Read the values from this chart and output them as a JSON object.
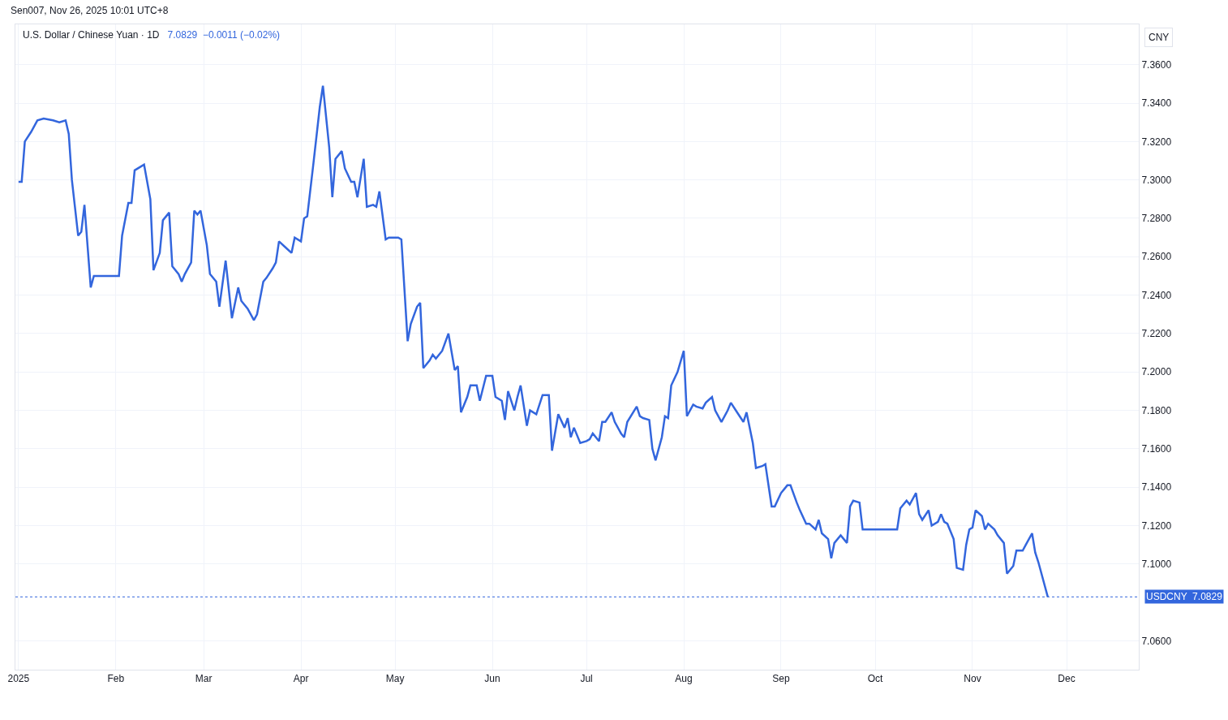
{
  "chart_data": {
    "type": "line",
    "title": "U.S. Dollar / Chinese Yuan · 1D",
    "subtitle": "7.0829  −0.0011 (−0.02%)",
    "annotations": [
      "Sen007, Nov 26, 2025 10:01 UTC+8",
      "CNY"
    ],
    "x": [
      "2025-01-01",
      "2025-01-02",
      "2025-01-03",
      "2025-01-05",
      "2025-01-07",
      "2025-01-09",
      "2025-01-12",
      "2025-01-14",
      "2025-01-16",
      "2025-01-17",
      "2025-01-18",
      "2025-01-20",
      "2025-01-21",
      "2025-01-22",
      "2025-01-24",
      "2025-01-25",
      "2025-02-02",
      "2025-02-03",
      "2025-02-05",
      "2025-02-06",
      "2025-02-07",
      "2025-02-09",
      "2025-02-10",
      "2025-02-12",
      "2025-02-13",
      "2025-02-15",
      "2025-02-16",
      "2025-02-18",
      "2025-02-19",
      "2025-02-21",
      "2025-02-22",
      "2025-02-23",
      "2025-02-25",
      "2025-02-26",
      "2025-02-27",
      "2025-02-28",
      "2025-03-02",
      "2025-03-03",
      "2025-03-05",
      "2025-03-06",
      "2025-03-08",
      "2025-03-10",
      "2025-03-11",
      "2025-03-12",
      "2025-03-13",
      "2025-03-15",
      "2025-03-17",
      "2025-03-18",
      "2025-03-20",
      "2025-03-21",
      "2025-03-23",
      "2025-03-24",
      "2025-03-25",
      "2025-03-27",
      "2025-03-29",
      "2025-03-30",
      "2025-04-01",
      "2025-04-02",
      "2025-04-03",
      "2025-04-05",
      "2025-04-07",
      "2025-04-08",
      "2025-04-10",
      "2025-04-11",
      "2025-04-12",
      "2025-04-14",
      "2025-04-15",
      "2025-04-17",
      "2025-04-18",
      "2025-04-19",
      "2025-04-21",
      "2025-04-22",
      "2025-04-24",
      "2025-04-25",
      "2025-04-26",
      "2025-04-28",
      "2025-04-29",
      "2025-05-02",
      "2025-05-03",
      "2025-05-05",
      "2025-05-06",
      "2025-05-08",
      "2025-05-09",
      "2025-05-10",
      "2025-05-12",
      "2025-05-13",
      "2025-05-14",
      "2025-05-16",
      "2025-05-18",
      "2025-05-20",
      "2025-05-21",
      "2025-05-22",
      "2025-05-24",
      "2025-05-25",
      "2025-05-27",
      "2025-05-28",
      "2025-05-30",
      "2025-06-01",
      "2025-06-02",
      "2025-06-04",
      "2025-06-05",
      "2025-06-06",
      "2025-06-08",
      "2025-06-09",
      "2025-06-10",
      "2025-06-12",
      "2025-06-13",
      "2025-06-15",
      "2025-06-17",
      "2025-06-19",
      "2025-06-20",
      "2025-06-22",
      "2025-06-24",
      "2025-06-25",
      "2025-06-26",
      "2025-06-27",
      "2025-06-29",
      "2025-07-01",
      "2025-07-02",
      "2025-07-03",
      "2025-07-05",
      "2025-07-06",
      "2025-07-07",
      "2025-07-09",
      "2025-07-10",
      "2025-07-12",
      "2025-07-13",
      "2025-07-14",
      "2025-07-17",
      "2025-07-18",
      "2025-07-19",
      "2025-07-21",
      "2025-07-22",
      "2025-07-23",
      "2025-07-25",
      "2025-07-26",
      "2025-07-27",
      "2025-07-28",
      "2025-07-30",
      "2025-08-01",
      "2025-08-02",
      "2025-08-04",
      "2025-08-05",
      "2025-08-07",
      "2025-08-08",
      "2025-08-10",
      "2025-08-11",
      "2025-08-13",
      "2025-08-15",
      "2025-08-16",
      "2025-08-18",
      "2025-08-20",
      "2025-08-21",
      "2025-08-23",
      "2025-08-24",
      "2025-08-26",
      "2025-08-27",
      "2025-08-29",
      "2025-08-30",
      "2025-09-01",
      "2025-09-02",
      "2025-09-03",
      "2025-09-04",
      "2025-09-06",
      "2025-09-07",
      "2025-09-09",
      "2025-09-10",
      "2025-09-12",
      "2025-09-13",
      "2025-09-14",
      "2025-09-16",
      "2025-09-17",
      "2025-09-18",
      "2025-09-20",
      "2025-09-22",
      "2025-09-23",
      "2025-09-24",
      "2025-09-26",
      "2025-09-27",
      "2025-09-28",
      "2025-10-08",
      "2025-10-09",
      "2025-10-11",
      "2025-10-12",
      "2025-10-14",
      "2025-10-15",
      "2025-10-16",
      "2025-10-18",
      "2025-10-19",
      "2025-10-21",
      "2025-10-22",
      "2025-10-23",
      "2025-10-24",
      "2025-10-26",
      "2025-10-27",
      "2025-10-29",
      "2025-10-30",
      "2025-10-31",
      "2025-11-01",
      "2025-11-02",
      "2025-11-04",
      "2025-11-05",
      "2025-11-06",
      "2025-11-08",
      "2025-11-09",
      "2025-11-11",
      "2025-11-12",
      "2025-11-14",
      "2025-11-15",
      "2025-11-17",
      "2025-11-18",
      "2025-11-20",
      "2025-11-21",
      "2025-11-22",
      "2025-11-25"
    ],
    "series": [
      {
        "color": "#3366dd",
        "values": [
          7.299,
          7.299,
          7.32,
          7.325,
          7.331,
          7.332,
          7.331,
          7.33,
          7.331,
          7.324,
          7.3,
          7.271,
          7.273,
          7.287,
          7.244,
          7.25,
          7.25,
          7.271,
          7.288,
          7.288,
          7.305,
          7.307,
          7.308,
          7.29,
          7.253,
          7.262,
          7.279,
          7.283,
          7.255,
          7.251,
          7.247,
          7.251,
          7.257,
          7.284,
          7.282,
          7.284,
          7.266,
          7.251,
          7.247,
          7.234,
          7.258,
          7.228,
          7.236,
          7.244,
          7.237,
          7.233,
          7.227,
          7.23,
          7.247,
          7.249,
          7.254,
          7.257,
          7.268,
          7.265,
          7.262,
          7.27,
          7.268,
          7.28,
          7.281,
          7.309,
          7.338,
          7.349,
          7.317,
          7.291,
          7.311,
          7.315,
          7.306,
          7.299,
          7.299,
          7.291,
          7.311,
          7.286,
          7.287,
          7.286,
          7.294,
          7.269,
          7.27,
          7.27,
          7.269,
          7.216,
          7.225,
          7.234,
          7.236,
          7.202,
          7.206,
          7.209,
          7.207,
          7.211,
          7.22,
          7.201,
          7.203,
          7.179,
          7.187,
          7.193,
          7.193,
          7.185,
          7.198,
          7.198,
          7.187,
          7.185,
          7.175,
          7.19,
          7.18,
          7.187,
          7.193,
          7.172,
          7.18,
          7.178,
          7.188,
          7.188,
          7.159,
          7.178,
          7.171,
          7.176,
          7.166,
          7.171,
          7.163,
          7.164,
          7.165,
          7.168,
          7.164,
          7.174,
          7.174,
          7.179,
          7.174,
          7.168,
          7.166,
          7.174,
          7.182,
          7.177,
          7.176,
          7.175,
          7.16,
          7.154,
          7.166,
          7.177,
          7.176,
          7.193,
          7.2,
          7.211,
          7.177,
          7.183,
          7.182,
          7.181,
          7.184,
          7.187,
          7.18,
          7.174,
          7.18,
          7.184,
          7.179,
          7.174,
          7.179,
          7.163,
          7.15,
          7.151,
          7.152,
          7.13,
          7.13,
          7.137,
          7.139,
          7.141,
          7.141,
          7.132,
          7.128,
          7.121,
          7.121,
          7.118,
          7.123,
          7.116,
          7.113,
          7.103,
          7.111,
          7.115,
          7.111,
          7.13,
          7.133,
          7.132,
          7.118,
          7.118,
          7.118,
          7.129,
          7.133,
          7.131,
          7.137,
          7.126,
          7.123,
          7.128,
          7.12,
          7.122,
          7.126,
          7.122,
          7.121,
          7.113,
          7.098,
          7.097,
          7.11,
          7.118,
          7.119,
          7.128,
          7.125,
          7.118,
          7.121,
          7.118,
          7.115,
          7.111,
          7.095,
          7.099,
          7.107,
          7.107,
          7.11,
          7.116,
          7.106,
          7.101,
          7.0829
        ]
      }
    ],
    "xlim": [
      "2024-12-31",
      "2025-12-24"
    ],
    "xticks": [
      {
        "value": "2025-01-01",
        "label": "2025"
      },
      {
        "value": "2025-02-01",
        "label": "Feb"
      },
      {
        "value": "2025-03-01",
        "label": "Mar"
      },
      {
        "value": "2025-04-01",
        "label": "Apr"
      },
      {
        "value": "2025-05-01",
        "label": "May"
      },
      {
        "value": "2025-06-01",
        "label": "Jun"
      },
      {
        "value": "2025-07-01",
        "label": "Jul"
      },
      {
        "value": "2025-08-01",
        "label": "Aug"
      },
      {
        "value": "2025-09-01",
        "label": "Sep"
      },
      {
        "value": "2025-10-01",
        "label": "Oct"
      },
      {
        "value": "2025-11-01",
        "label": "Nov"
      },
      {
        "value": "2025-12-01",
        "label": "Dec"
      }
    ],
    "ylim": [
      7.045,
      7.381
    ],
    "yticks": [
      {
        "value": 7.06,
        "label": "7.0600"
      },
      {
        "value": 7.1,
        "label": "7.1000"
      },
      {
        "value": 7.12,
        "label": "7.1200"
      },
      {
        "value": 7.14,
        "label": "7.1400"
      },
      {
        "value": 7.16,
        "label": "7.1600"
      },
      {
        "value": 7.18,
        "label": "7.1800"
      },
      {
        "value": 7.2,
        "label": "7.2000"
      },
      {
        "value": 7.22,
        "label": "7.2200"
      },
      {
        "value": 7.24,
        "label": "7.2400"
      },
      {
        "value": 7.26,
        "label": "7.2600"
      },
      {
        "value": 7.28,
        "label": "7.2800"
      },
      {
        "value": 7.3,
        "label": "7.3000"
      },
      {
        "value": 7.32,
        "label": "7.3200"
      },
      {
        "value": 7.34,
        "label": "7.3400"
      },
      {
        "value": 7.36,
        "label": "7.3600"
      }
    ],
    "ref_lines": [
      {
        "axis": "y",
        "value": 7.0829,
        "label": "USDCNY  7.0829",
        "color": "#3366dd",
        "line_style": "dotted"
      }
    ],
    "grid": true,
    "marker": "none",
    "line_style": "solid"
  }
}
